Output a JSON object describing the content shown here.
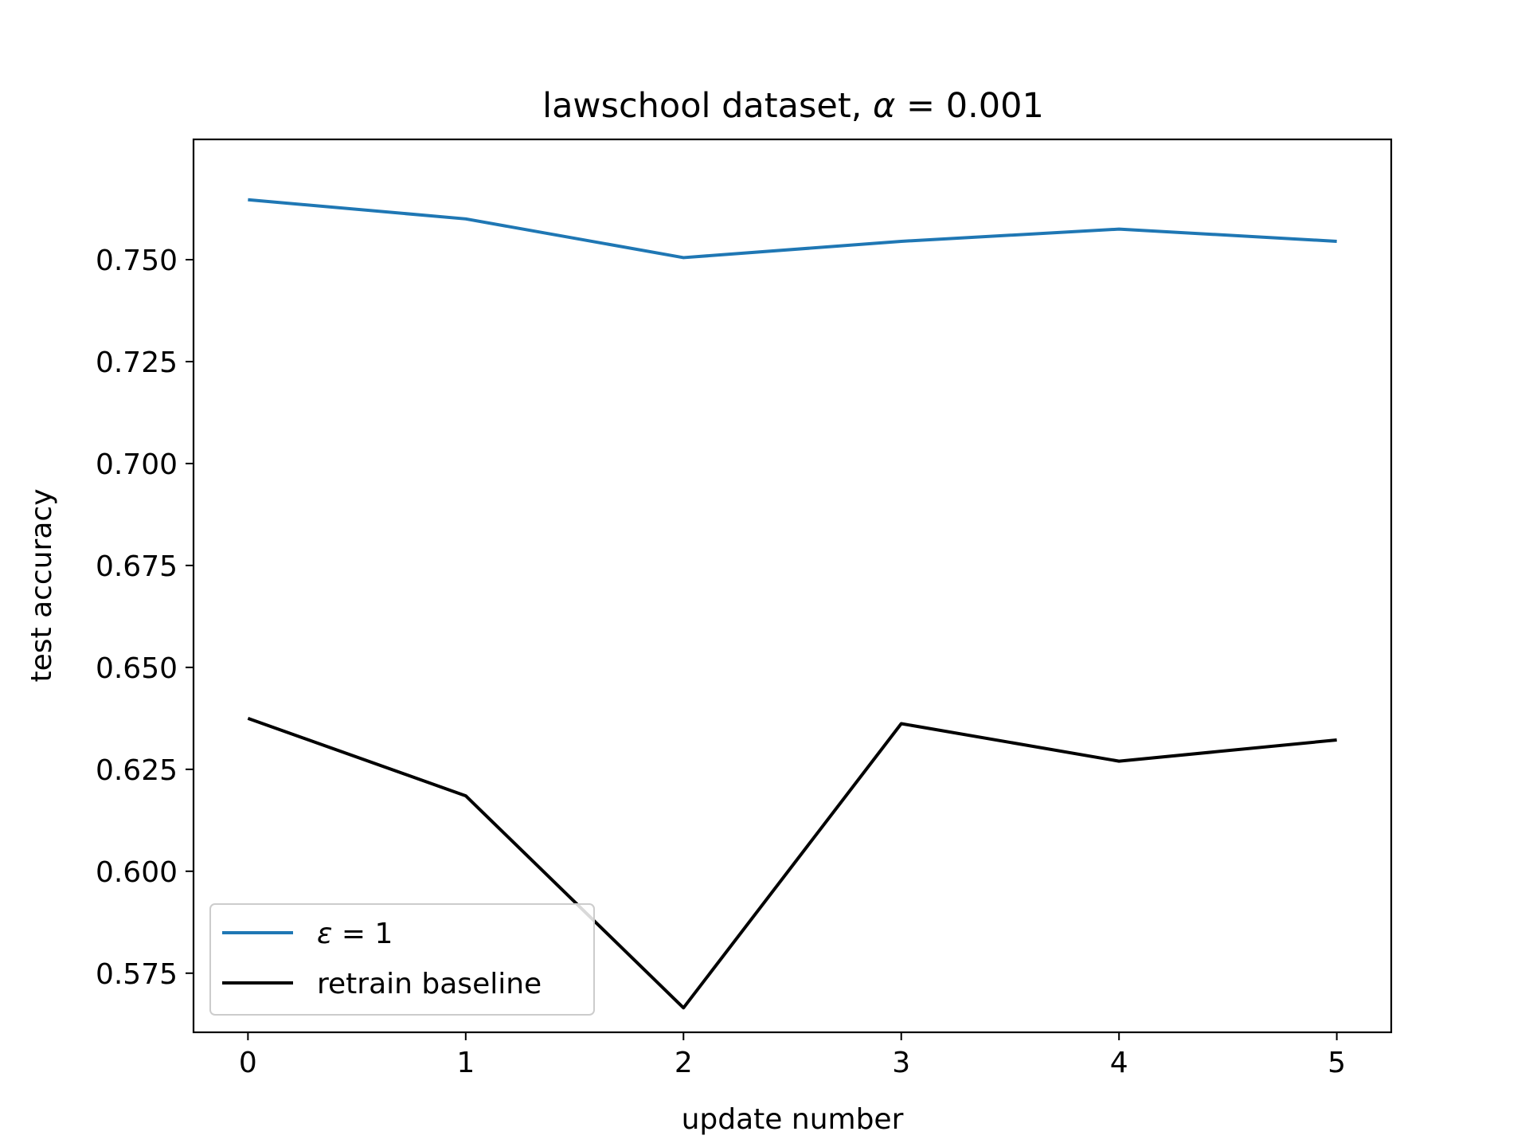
{
  "chart_data": {
    "type": "line",
    "title": {
      "prefix": "lawschool dataset, ",
      "symbol": "α",
      "suffix": " = 0.001"
    },
    "xlabel": "update number",
    "ylabel": "test accuracy",
    "x": [
      0,
      1,
      2,
      3,
      4,
      5
    ],
    "xticks": [
      "0",
      "1",
      "2",
      "3",
      "4",
      "5"
    ],
    "yticks": [
      "0.575",
      "0.600",
      "0.625",
      "0.650",
      "0.675",
      "0.700",
      "0.725",
      "0.750"
    ],
    "xlim": [
      -0.25,
      5.25
    ],
    "ylim": [
      0.5605,
      0.7795
    ],
    "grid": false,
    "legend_position": "lower-left",
    "series": [
      {
        "name": "ε = 1",
        "name_symbol": "ε",
        "name_suffix": " = 1",
        "color": "#1f77b4",
        "values": [
          0.7647,
          0.76,
          0.7505,
          0.7545,
          0.7575,
          0.7545
        ]
      },
      {
        "name": "retrain baseline",
        "color": "#000000",
        "values": [
          0.6375,
          0.6185,
          0.5665,
          0.6362,
          0.627,
          0.6322
        ]
      }
    ]
  }
}
